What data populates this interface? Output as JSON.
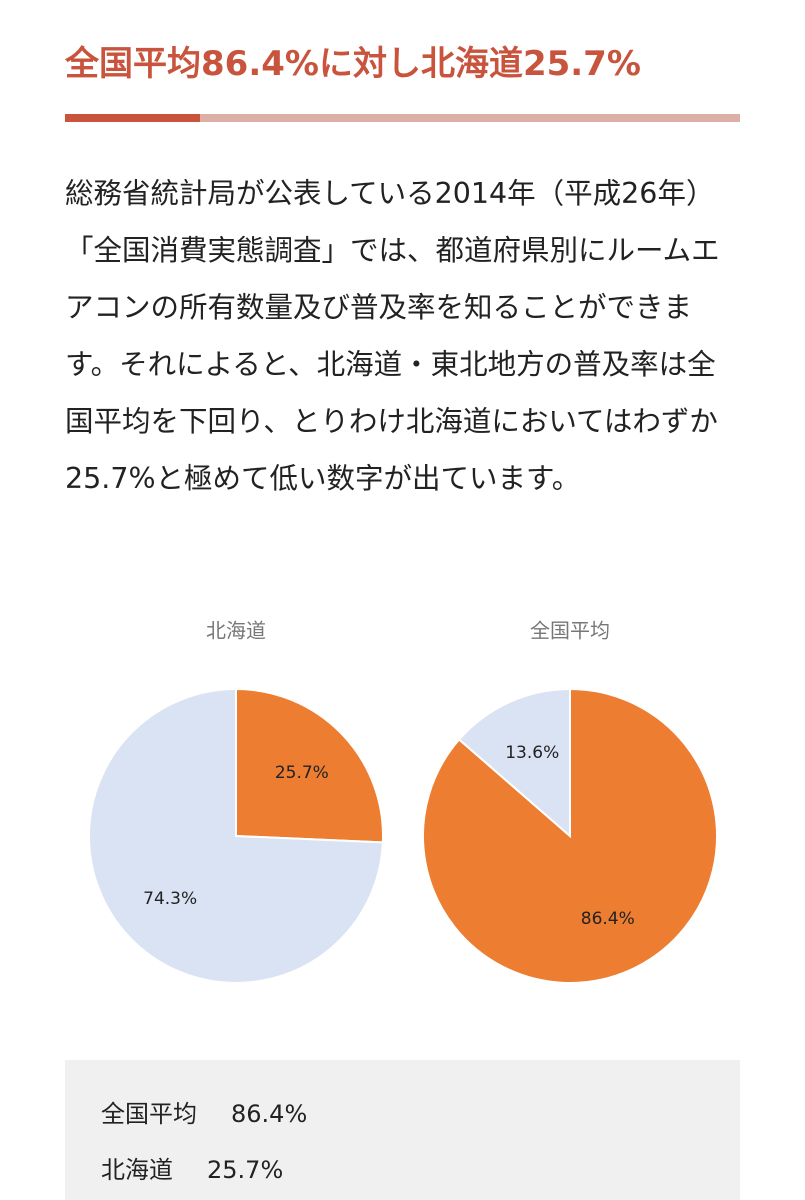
{
  "heading": {
    "title": "全国平均86.4%に対し北海道25.7%"
  },
  "paragraph": "総務省統計局が公表している2014年（平成26年）「全国消費実態調査」では、都道府県別にルームエアコンの所有数量及び普及率を知ることができます。それによると、北海道・東北地方の普及率は全国平均を下回り、とりわけ北海道においてはわずか25.7%と極めて低い数字が出ています。",
  "chart_data": [
    {
      "type": "pie",
      "title": "北海道",
      "values": [
        25.7,
        74.3
      ],
      "value_labels": [
        "25.7%",
        "74.3%"
      ],
      "colors": [
        "#ed7d31",
        "#dae3f3"
      ]
    },
    {
      "type": "pie",
      "title": "全国平均",
      "values": [
        86.4,
        13.6
      ],
      "value_labels": [
        "86.4%",
        "13.6%"
      ],
      "colors": [
        "#ed7d31",
        "#dae3f3"
      ]
    }
  ],
  "summary": {
    "rows": [
      [
        "全国平均",
        "86.4%"
      ],
      [
        "北海道",
        "25.7%"
      ]
    ]
  }
}
